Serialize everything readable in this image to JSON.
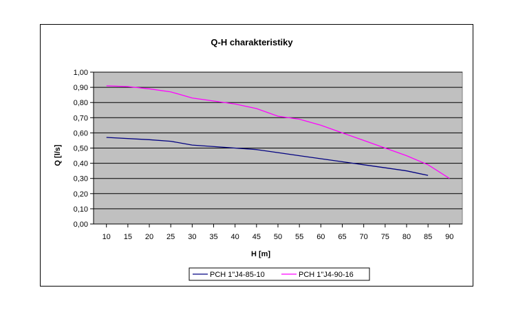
{
  "chart_data": {
    "type": "line",
    "title": "Q-H charakteristiky",
    "xlabel": "H [m]",
    "ylabel": "Q [l/s]",
    "xlim": [
      7,
      93
    ],
    "ylim": [
      0,
      1.0
    ],
    "x_ticks": [
      "10",
      "15",
      "20",
      "25",
      "30",
      "35",
      "40",
      "45",
      "50",
      "55",
      "60",
      "65",
      "70",
      "75",
      "80",
      "85",
      "90"
    ],
    "y_ticks": [
      "0,00",
      "0,10",
      "0,20",
      "0,30",
      "0,40",
      "0,50",
      "0,60",
      "0,70",
      "0,80",
      "0,90",
      "1,00"
    ],
    "grid": "horizontal",
    "legend_position": "bottom",
    "plot_background": "#c0c0c0",
    "series": [
      {
        "name": "PCH 1\"J4-85-10",
        "color": "#000080",
        "x": [
          10,
          20,
          25,
          30,
          40,
          45,
          50,
          55,
          60,
          65,
          70,
          75,
          80,
          85
        ],
        "y": [
          0.57,
          0.555,
          0.545,
          0.52,
          0.5,
          0.49,
          0.47,
          0.45,
          0.43,
          0.41,
          0.39,
          0.37,
          0.35,
          0.32
        ]
      },
      {
        "name": "PCH 1\"J4-90-16",
        "color": "#ff00ff",
        "x": [
          10,
          15,
          20,
          25,
          30,
          35,
          40,
          45,
          50,
          55,
          60,
          65,
          70,
          75,
          80,
          85,
          90
        ],
        "y": [
          0.91,
          0.905,
          0.89,
          0.87,
          0.83,
          0.81,
          0.79,
          0.76,
          0.71,
          0.69,
          0.65,
          0.6,
          0.55,
          0.5,
          0.45,
          0.39,
          0.3
        ]
      }
    ]
  }
}
